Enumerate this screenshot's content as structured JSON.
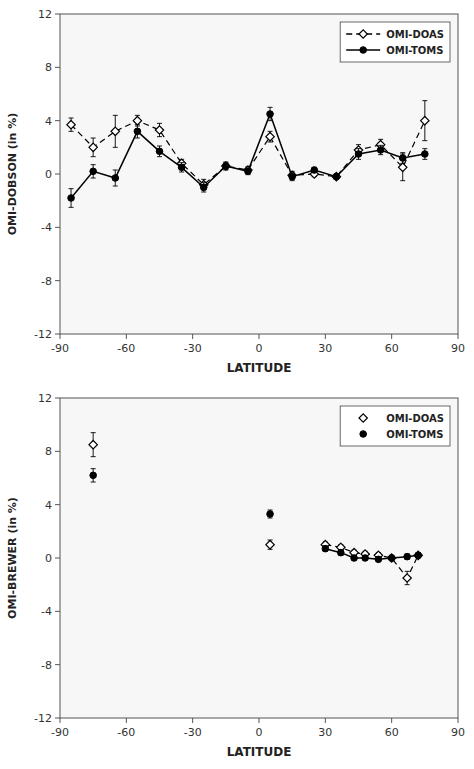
{
  "chart_data": [
    {
      "type": "line",
      "xlabel": "LATITUDE",
      "ylabel": "OMI-DOBSON (in %)",
      "xlim": [
        -90,
        90
      ],
      "xticks": [
        -90,
        -60,
        -30,
        0,
        30,
        60,
        90
      ],
      "ylim": [
        -12,
        12
      ],
      "yticks": [
        -12,
        -8,
        -4,
        0,
        4,
        8,
        12
      ],
      "grid": false,
      "legend": "upper right",
      "series": [
        {
          "name": "OMI-DOAS",
          "color": "black",
          "marker": "diamond",
          "line_style": "dashed",
          "x": [
            -85,
            -75,
            -65,
            -55,
            -45,
            -35,
            -25,
            -15,
            -5,
            5,
            15,
            25,
            35,
            45,
            55,
            65,
            75
          ],
          "values": [
            3.7,
            2.0,
            3.2,
            4.0,
            3.3,
            0.8,
            -0.8,
            0.6,
            0.3,
            2.8,
            -0.1,
            0.0,
            -0.2,
            1.8,
            2.2,
            0.5,
            4.0
          ],
          "errors": [
            0.5,
            0.7,
            1.2,
            0.4,
            0.5,
            0.3,
            0.4,
            0.3,
            0.25,
            0.4,
            0.3,
            0.2,
            0.2,
            0.4,
            0.4,
            1.0,
            1.5
          ]
        },
        {
          "name": "OMI-TOMS",
          "color": "black",
          "marker": "circle",
          "line_style": "solid",
          "x": [
            -85,
            -75,
            -65,
            -55,
            -45,
            -35,
            -25,
            -15,
            -5,
            5,
            15,
            25,
            35,
            45,
            55,
            65,
            75
          ],
          "values": [
            -1.8,
            0.2,
            -0.3,
            3.2,
            1.7,
            0.5,
            -1.0,
            0.6,
            0.2,
            4.5,
            -0.2,
            0.3,
            -0.2,
            1.5,
            1.8,
            1.2,
            1.5
          ],
          "errors": [
            0.7,
            0.5,
            0.6,
            0.5,
            0.4,
            0.35,
            0.35,
            0.25,
            0.25,
            0.5,
            0.3,
            0.2,
            0.2,
            0.4,
            0.35,
            0.4,
            0.4
          ]
        }
      ]
    },
    {
      "type": "line",
      "xlabel": "LATITUDE",
      "ylabel": "OMI-BREWER (in %)",
      "xlim": [
        -90,
        90
      ],
      "xticks": [
        -90,
        -60,
        -30,
        0,
        30,
        60,
        90
      ],
      "ylim": [
        -12,
        12
      ],
      "yticks": [
        -12,
        -8,
        -4,
        0,
        4,
        8,
        12
      ],
      "grid": false,
      "legend": "upper right",
      "series": [
        {
          "name": "OMI-DOAS",
          "color": "black",
          "marker": "diamond",
          "line_style": "none",
          "x": [
            -75,
            5
          ],
          "values": [
            8.5,
            1.0
          ],
          "errors": [
            0.9,
            0.35
          ]
        },
        {
          "color": "black",
          "marker": "diamond",
          "line_style": "dashed",
          "x": [
            30,
            37,
            43,
            48,
            54,
            60,
            67,
            72
          ],
          "values": [
            1.0,
            0.8,
            0.4,
            0.3,
            0.2,
            0.0,
            -1.5,
            0.2
          ],
          "errors": [
            0.2,
            0.2,
            0.2,
            0.2,
            0.2,
            0.2,
            0.5,
            0.2
          ]
        },
        {
          "name": "OMI-TOMS",
          "color": "black",
          "marker": "circle",
          "line_style": "none",
          "x": [
            -75,
            5
          ],
          "values": [
            6.2,
            3.3
          ],
          "errors": [
            0.5,
            0.3
          ]
        },
        {
          "color": "black",
          "marker": "circle",
          "line_style": "solid",
          "x": [
            30,
            37,
            43,
            48,
            54,
            60,
            67,
            72
          ],
          "values": [
            0.7,
            0.4,
            0.0,
            0.0,
            -0.1,
            0.0,
            0.1,
            0.2
          ],
          "errors": [
            0.2,
            0.2,
            0.15,
            0.15,
            0.15,
            0.15,
            0.2,
            0.15
          ]
        }
      ]
    }
  ]
}
